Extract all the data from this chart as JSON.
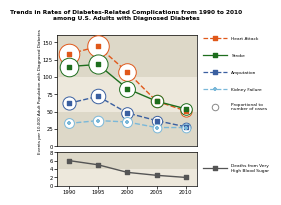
{
  "title": "Trends in Rates of Diabetes-Related Complications from 1990 to 2010\namong U.S. Adults with Diagnosed Diabetes",
  "years": [
    1990,
    1995,
    2000,
    2005,
    2010
  ],
  "heart_attack": [
    133,
    144,
    107,
    65,
    51
  ],
  "stroke": [
    115,
    118,
    83,
    65,
    54
  ],
  "amputation": [
    62,
    72,
    48,
    37,
    28
  ],
  "kidney_failure": [
    33,
    37,
    35,
    27,
    27
  ],
  "deaths": [
    6.0,
    5.0,
    3.2,
    2.5,
    2.0
  ],
  "heart_attack_color": "#e0581a",
  "stroke_color": "#1e6e1e",
  "amputation_color": "#3a5fa0",
  "kidney_failure_color": "#7ab8d9",
  "deaths_color": "#555555",
  "bg_light": "#ede8dc",
  "bg_dark": "#ddd8c8",
  "ylabel": "Events per 10,000 Adult Population with Diagnosed Diabetes",
  "heart_attack_circle_sizes": [
    220,
    240,
    160,
    80,
    65
  ],
  "stroke_circle_sizes": [
    180,
    190,
    130,
    80,
    70
  ],
  "amputation_circle_sizes": [
    90,
    110,
    70,
    55,
    40
  ],
  "kidney_failure_circle_sizes": [
    50,
    58,
    52,
    40,
    40
  ]
}
